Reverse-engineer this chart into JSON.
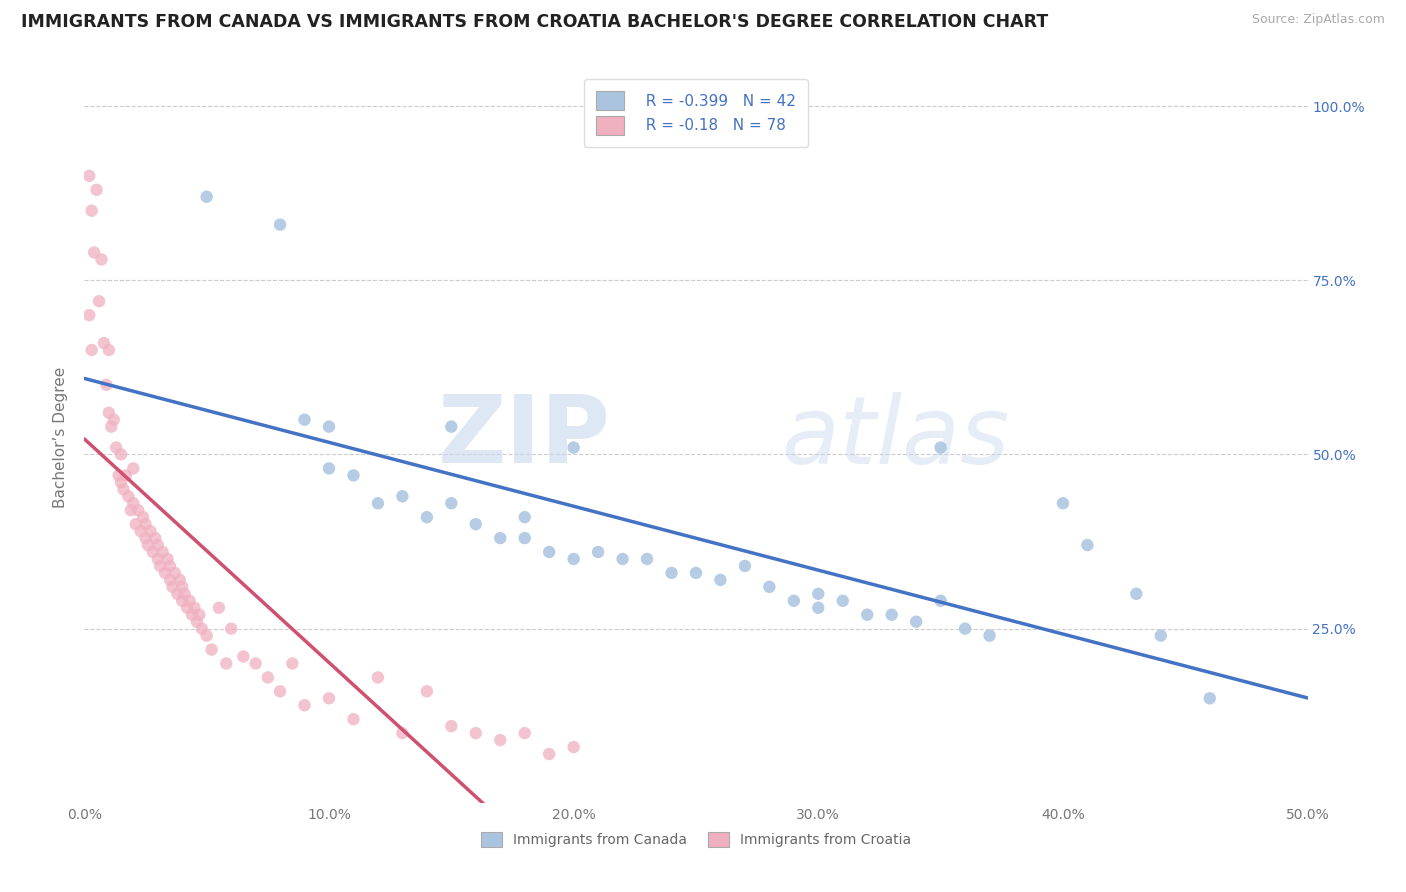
{
  "title": "IMMIGRANTS FROM CANADA VS IMMIGRANTS FROM CROATIA BACHELOR'S DEGREE CORRELATION CHART",
  "source": "Source: ZipAtlas.com",
  "ylabel": "Bachelor’s Degree",
  "xlim": [
    0.0,
    0.5
  ],
  "ylim": [
    0.0,
    1.0
  ],
  "xtick_labels": [
    "0.0%",
    "10.0%",
    "20.0%",
    "30.0%",
    "40.0%",
    "50.0%"
  ],
  "xtick_vals": [
    0.0,
    0.1,
    0.2,
    0.3,
    0.4,
    0.5
  ],
  "ytick_right_labels": [
    "25.0%",
    "50.0%",
    "75.0%",
    "100.0%"
  ],
  "ytick_right_vals": [
    0.25,
    0.5,
    0.75,
    1.0
  ],
  "canada_color": "#aac4e0",
  "croatia_color": "#f0b0c0",
  "canada_line_color": "#4472c4",
  "croatia_line_color": "#d05070",
  "canada_R": -0.399,
  "canada_N": 42,
  "croatia_R": -0.18,
  "croatia_N": 78,
  "legend_text_color": "#4472c4",
  "background_color": "#ffffff",
  "grid_color": "#cccccc",
  "canada_scatter_x": [
    0.05,
    0.08,
    0.09,
    0.1,
    0.1,
    0.11,
    0.12,
    0.13,
    0.14,
    0.15,
    0.16,
    0.17,
    0.18,
    0.18,
    0.19,
    0.2,
    0.21,
    0.22,
    0.23,
    0.24,
    0.25,
    0.26,
    0.27,
    0.28,
    0.29,
    0.3,
    0.3,
    0.31,
    0.32,
    0.33,
    0.34,
    0.35,
    0.36,
    0.37,
    0.4,
    0.41,
    0.43,
    0.44,
    0.46,
    0.15,
    0.2,
    0.35
  ],
  "canada_scatter_y": [
    0.87,
    0.83,
    0.55,
    0.48,
    0.54,
    0.47,
    0.43,
    0.44,
    0.41,
    0.43,
    0.4,
    0.38,
    0.38,
    0.41,
    0.36,
    0.35,
    0.36,
    0.35,
    0.35,
    0.33,
    0.33,
    0.32,
    0.34,
    0.31,
    0.29,
    0.3,
    0.28,
    0.29,
    0.27,
    0.27,
    0.26,
    0.29,
    0.25,
    0.24,
    0.43,
    0.37,
    0.3,
    0.24,
    0.15,
    0.54,
    0.51,
    0.51
  ],
  "croatia_scatter_x": [
    0.002,
    0.003,
    0.004,
    0.005,
    0.006,
    0.007,
    0.008,
    0.009,
    0.01,
    0.01,
    0.011,
    0.012,
    0.013,
    0.014,
    0.015,
    0.015,
    0.016,
    0.017,
    0.018,
    0.019,
    0.02,
    0.02,
    0.021,
    0.022,
    0.023,
    0.024,
    0.025,
    0.025,
    0.026,
    0.027,
    0.028,
    0.029,
    0.03,
    0.03,
    0.031,
    0.032,
    0.033,
    0.034,
    0.035,
    0.035,
    0.036,
    0.037,
    0.038,
    0.039,
    0.04,
    0.04,
    0.041,
    0.042,
    0.043,
    0.044,
    0.045,
    0.046,
    0.047,
    0.048,
    0.05,
    0.052,
    0.055,
    0.058,
    0.06,
    0.065,
    0.07,
    0.075,
    0.08,
    0.085,
    0.09,
    0.1,
    0.11,
    0.12,
    0.13,
    0.14,
    0.15,
    0.16,
    0.17,
    0.18,
    0.19,
    0.2,
    0.002,
    0.003
  ],
  "croatia_scatter_y": [
    0.9,
    0.85,
    0.79,
    0.88,
    0.72,
    0.78,
    0.66,
    0.6,
    0.56,
    0.65,
    0.54,
    0.55,
    0.51,
    0.47,
    0.5,
    0.46,
    0.45,
    0.47,
    0.44,
    0.42,
    0.48,
    0.43,
    0.4,
    0.42,
    0.39,
    0.41,
    0.38,
    0.4,
    0.37,
    0.39,
    0.36,
    0.38,
    0.35,
    0.37,
    0.34,
    0.36,
    0.33,
    0.35,
    0.34,
    0.32,
    0.31,
    0.33,
    0.3,
    0.32,
    0.31,
    0.29,
    0.3,
    0.28,
    0.29,
    0.27,
    0.28,
    0.26,
    0.27,
    0.25,
    0.24,
    0.22,
    0.28,
    0.2,
    0.25,
    0.21,
    0.2,
    0.18,
    0.16,
    0.2,
    0.14,
    0.15,
    0.12,
    0.18,
    0.1,
    0.16,
    0.11,
    0.1,
    0.09,
    0.1,
    0.07,
    0.08,
    0.7,
    0.65
  ]
}
